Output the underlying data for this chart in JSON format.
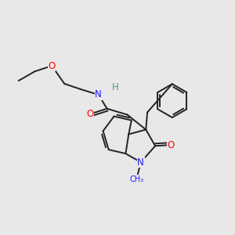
{
  "background_color": "#e8e8e8",
  "figure_size": [
    3.0,
    3.0
  ],
  "dpi": 100,
  "label_colors": {
    "N": "#1a1aff",
    "O": "#ff0000",
    "H": "#4a9999",
    "C": "#000000"
  },
  "bond_color": "#222222",
  "lw": 1.4,
  "font_size": 8.5
}
